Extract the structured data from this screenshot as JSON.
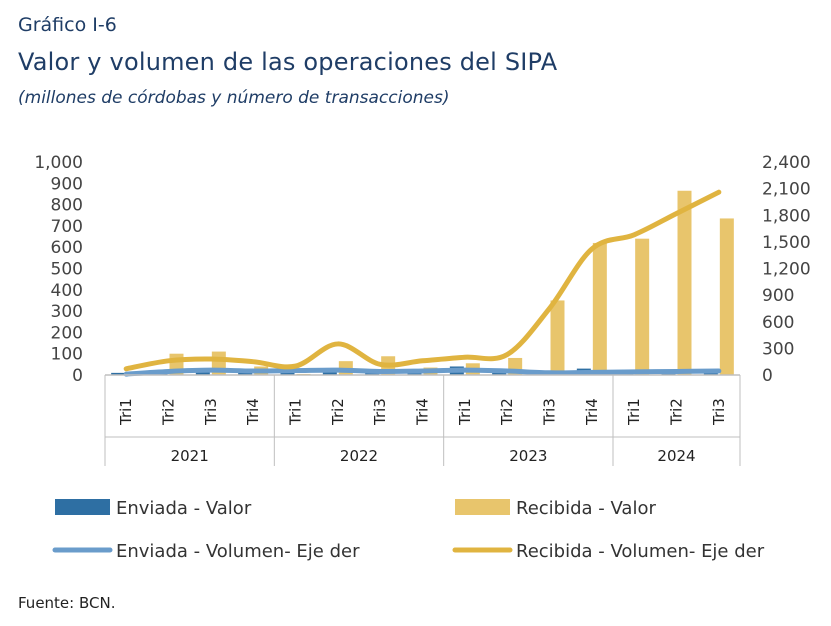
{
  "header": {
    "label": "Gráfico I-6",
    "title": "Valor y volumen de las operaciones del SIPA",
    "subtitle": "(millones de córdobas y número de transacciones)"
  },
  "footer": {
    "source": "Fuente: BCN."
  },
  "chart_data": {
    "type": "bar",
    "categories": [
      "Tri1",
      "Tri2",
      "Tri3",
      "Tri4",
      "Tri1",
      "Tri2",
      "Tri3",
      "Tri4",
      "Tri1",
      "Tri2",
      "Tri3",
      "Tri4",
      "Tri1",
      "Tri2",
      "Tri3"
    ],
    "year_groups": [
      {
        "label": "2021",
        "span": 4
      },
      {
        "label": "2022",
        "span": 4
      },
      {
        "label": "2023",
        "span": 4
      },
      {
        "label": "2024",
        "span": 3
      }
    ],
    "ylim": [
      0,
      1000
    ],
    "y_ticks": [
      "0",
      "100",
      "200",
      "300",
      "400",
      "500",
      "600",
      "700",
      "800",
      "900",
      "1,000"
    ],
    "y2lim": [
      0,
      2400
    ],
    "y2_ticks": [
      "0",
      "300",
      "600",
      "900",
      "1,200",
      "1,500",
      "1,800",
      "2,100",
      "2,400"
    ],
    "series": [
      {
        "name": "Enviada - Valor",
        "kind": "bar",
        "axis": "left",
        "color": "#2e6fa3",
        "values": [
          10,
          20,
          25,
          30,
          10,
          20,
          20,
          28,
          40,
          30,
          12,
          30,
          10,
          15,
          12
        ]
      },
      {
        "name": "Recibida - Valor",
        "kind": "bar",
        "axis": "left",
        "color": "#e8c56c",
        "values": [
          5,
          100,
          110,
          40,
          5,
          65,
          88,
          35,
          55,
          80,
          350,
          620,
          640,
          865,
          735
        ]
      },
      {
        "name": "Enviada - Volumen- Eje der",
        "kind": "line",
        "axis": "right",
        "color": "#6a9ccb",
        "values": [
          10,
          40,
          55,
          45,
          50,
          55,
          40,
          45,
          55,
          45,
          25,
          30,
          35,
          40,
          45
        ]
      },
      {
        "name": "Recibida - Volumen- Eje der",
        "kind": "line",
        "axis": "right",
        "color": "#e0b440",
        "values": [
          70,
          160,
          180,
          150,
          100,
          350,
          120,
          160,
          200,
          230,
          750,
          1420,
          1580,
          1820,
          2060
        ]
      }
    ],
    "legend_position": "bottom",
    "grid": false
  }
}
